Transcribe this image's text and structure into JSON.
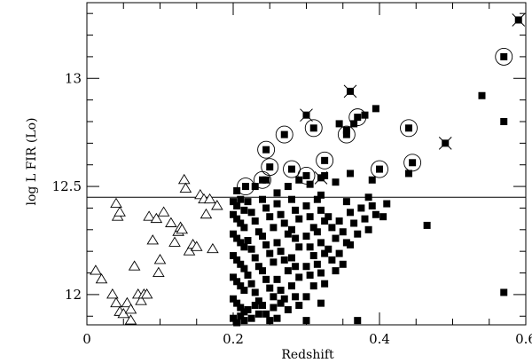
{
  "chart_data": {
    "type": "scatter",
    "title": "",
    "xlabel": "Redshift",
    "ylabel": "log L FIR (Lo)",
    "xlim": [
      0,
      0.6
    ],
    "ylim": [
      11.86,
      13.35
    ],
    "xticks": [
      0,
      0.2,
      0.4,
      0.6
    ],
    "xtick_labels": [
      "0",
      "0.2",
      "0.4",
      "0.6"
    ],
    "yticks": [
      12,
      12.5,
      13
    ],
    "ytick_labels": [
      "12",
      "12.5",
      "13"
    ],
    "grid": false,
    "legend": "none",
    "reference_line": {
      "y": 12.45
    },
    "series": [
      {
        "marker": "open-triangle",
        "points": [
          [
            0.012,
            12.11
          ],
          [
            0.02,
            12.07
          ],
          [
            0.04,
            12.42
          ],
          [
            0.042,
            12.36
          ],
          [
            0.045,
            12.38
          ],
          [
            0.035,
            12.0
          ],
          [
            0.04,
            11.96
          ],
          [
            0.045,
            11.92
          ],
          [
            0.05,
            11.91
          ],
          [
            0.055,
            11.96
          ],
          [
            0.06,
            11.93
          ],
          [
            0.06,
            11.88
          ],
          [
            0.065,
            12.13
          ],
          [
            0.07,
            12.0
          ],
          [
            0.074,
            11.97
          ],
          [
            0.078,
            12.0
          ],
          [
            0.082,
            12.0
          ],
          [
            0.085,
            12.36
          ],
          [
            0.09,
            12.25
          ],
          [
            0.095,
            12.35
          ],
          [
            0.098,
            12.1
          ],
          [
            0.1,
            12.16
          ],
          [
            0.105,
            12.38
          ],
          [
            0.115,
            12.33
          ],
          [
            0.12,
            12.24
          ],
          [
            0.125,
            12.29
          ],
          [
            0.128,
            12.31
          ],
          [
            0.13,
            12.3
          ],
          [
            0.133,
            12.53
          ],
          [
            0.135,
            12.49
          ],
          [
            0.14,
            12.2
          ],
          [
            0.145,
            12.23
          ],
          [
            0.15,
            12.22
          ],
          [
            0.155,
            12.46
          ],
          [
            0.16,
            12.44
          ],
          [
            0.163,
            12.37
          ],
          [
            0.168,
            12.44
          ],
          [
            0.172,
            12.21
          ],
          [
            0.178,
            12.41
          ]
        ]
      },
      {
        "marker": "filled-square",
        "points": [
          [
            0.2,
            12.43
          ],
          [
            0.205,
            12.41
          ],
          [
            0.21,
            12.44
          ],
          [
            0.215,
            12.39
          ],
          [
            0.2,
            12.37
          ],
          [
            0.205,
            12.35
          ],
          [
            0.21,
            12.33
          ],
          [
            0.215,
            12.31
          ],
          [
            0.2,
            12.28
          ],
          [
            0.205,
            12.26
          ],
          [
            0.21,
            12.24
          ],
          [
            0.215,
            12.22
          ],
          [
            0.2,
            12.18
          ],
          [
            0.205,
            12.16
          ],
          [
            0.21,
            12.14
          ],
          [
            0.215,
            12.12
          ],
          [
            0.2,
            12.08
          ],
          [
            0.205,
            12.06
          ],
          [
            0.21,
            12.04
          ],
          [
            0.215,
            12.02
          ],
          [
            0.2,
            11.98
          ],
          [
            0.205,
            11.96
          ],
          [
            0.21,
            11.94
          ],
          [
            0.215,
            11.92
          ],
          [
            0.2,
            11.89
          ],
          [
            0.205,
            11.87
          ],
          [
            0.21,
            11.9
          ],
          [
            0.215,
            11.88
          ],
          [
            0.22,
            12.43
          ],
          [
            0.225,
            12.38
          ],
          [
            0.23,
            12.34
          ],
          [
            0.235,
            12.29
          ],
          [
            0.22,
            12.25
          ],
          [
            0.225,
            12.21
          ],
          [
            0.23,
            12.17
          ],
          [
            0.235,
            12.13
          ],
          [
            0.22,
            12.09
          ],
          [
            0.225,
            12.05
          ],
          [
            0.23,
            12.01
          ],
          [
            0.235,
            11.97
          ],
          [
            0.22,
            11.93
          ],
          [
            0.225,
            11.89
          ],
          [
            0.23,
            11.95
          ],
          [
            0.235,
            11.91
          ],
          [
            0.24,
            12.44
          ],
          [
            0.245,
            12.4
          ],
          [
            0.25,
            12.36
          ],
          [
            0.255,
            12.31
          ],
          [
            0.24,
            12.27
          ],
          [
            0.245,
            12.23
          ],
          [
            0.25,
            12.19
          ],
          [
            0.255,
            12.15
          ],
          [
            0.24,
            12.11
          ],
          [
            0.245,
            12.07
          ],
          [
            0.25,
            12.03
          ],
          [
            0.255,
            11.99
          ],
          [
            0.24,
            11.95
          ],
          [
            0.245,
            11.91
          ],
          [
            0.25,
            11.88
          ],
          [
            0.255,
            11.94
          ],
          [
            0.26,
            12.42
          ],
          [
            0.265,
            12.37
          ],
          [
            0.27,
            12.33
          ],
          [
            0.275,
            12.28
          ],
          [
            0.26,
            12.24
          ],
          [
            0.265,
            12.2
          ],
          [
            0.27,
            12.16
          ],
          [
            0.275,
            12.11
          ],
          [
            0.26,
            12.07
          ],
          [
            0.265,
            12.02
          ],
          [
            0.27,
            11.98
          ],
          [
            0.275,
            11.93
          ],
          [
            0.26,
            11.89
          ],
          [
            0.265,
            11.96
          ],
          [
            0.28,
            12.44
          ],
          [
            0.285,
            12.39
          ],
          [
            0.29,
            12.35
          ],
          [
            0.28,
            12.3
          ],
          [
            0.285,
            12.26
          ],
          [
            0.29,
            12.22
          ],
          [
            0.28,
            12.17
          ],
          [
            0.285,
            12.13
          ],
          [
            0.29,
            12.08
          ],
          [
            0.28,
            12.04
          ],
          [
            0.285,
            11.99
          ],
          [
            0.29,
            11.95
          ],
          [
            0.3,
            12.41
          ],
          [
            0.305,
            12.36
          ],
          [
            0.31,
            12.31
          ],
          [
            0.3,
            12.27
          ],
          [
            0.305,
            12.22
          ],
          [
            0.31,
            12.18
          ],
          [
            0.3,
            12.13
          ],
          [
            0.305,
            12.09
          ],
          [
            0.31,
            12.04
          ],
          [
            0.3,
            11.99
          ],
          [
            0.315,
            12.44
          ],
          [
            0.32,
            12.39
          ],
          [
            0.325,
            12.34
          ],
          [
            0.315,
            12.29
          ],
          [
            0.32,
            12.24
          ],
          [
            0.325,
            12.19
          ],
          [
            0.315,
            12.14
          ],
          [
            0.32,
            12.1
          ],
          [
            0.325,
            12.05
          ],
          [
            0.33,
            12.36
          ],
          [
            0.335,
            12.31
          ],
          [
            0.34,
            12.26
          ],
          [
            0.33,
            12.21
          ],
          [
            0.335,
            12.16
          ],
          [
            0.34,
            12.11
          ],
          [
            0.345,
            12.34
          ],
          [
            0.35,
            12.29
          ],
          [
            0.355,
            12.24
          ],
          [
            0.345,
            12.19
          ],
          [
            0.35,
            12.14
          ],
          [
            0.36,
            12.38
          ],
          [
            0.365,
            12.33
          ],
          [
            0.37,
            12.28
          ],
          [
            0.36,
            12.23
          ],
          [
            0.375,
            12.4
          ],
          [
            0.38,
            12.35
          ],
          [
            0.385,
            12.3
          ],
          [
            0.39,
            12.41
          ],
          [
            0.395,
            12.37
          ],
          [
            0.405,
            12.36
          ],
          [
            0.41,
            12.42
          ],
          [
            0.385,
            12.45
          ],
          [
            0.355,
            12.43
          ],
          [
            0.32,
            12.46
          ],
          [
            0.3,
            11.88
          ],
          [
            0.32,
            11.96
          ],
          [
            0.37,
            11.88
          ],
          [
            0.465,
            12.32
          ],
          [
            0.57,
            12.01
          ],
          [
            0.205,
            12.48
          ],
          [
            0.23,
            12.5
          ],
          [
            0.245,
            12.53
          ],
          [
            0.26,
            12.47
          ],
          [
            0.275,
            12.5
          ],
          [
            0.29,
            12.53
          ],
          [
            0.305,
            12.51
          ],
          [
            0.325,
            12.55
          ],
          [
            0.34,
            12.52
          ],
          [
            0.36,
            12.56
          ],
          [
            0.365,
            12.79
          ],
          [
            0.38,
            12.83
          ],
          [
            0.395,
            12.86
          ],
          [
            0.345,
            12.79
          ],
          [
            0.355,
            12.76
          ],
          [
            0.39,
            12.53
          ],
          [
            0.44,
            12.56
          ],
          [
            0.54,
            12.92
          ],
          [
            0.57,
            12.8
          ]
        ]
      },
      {
        "marker": "circled-filled-square",
        "points": [
          [
            0.217,
            12.5
          ],
          [
            0.24,
            12.53
          ],
          [
            0.245,
            12.67
          ],
          [
            0.25,
            12.59
          ],
          [
            0.27,
            12.74
          ],
          [
            0.28,
            12.58
          ],
          [
            0.3,
            12.55
          ],
          [
            0.31,
            12.77
          ],
          [
            0.325,
            12.62
          ],
          [
            0.355,
            12.74
          ],
          [
            0.37,
            12.82
          ],
          [
            0.4,
            12.58
          ],
          [
            0.44,
            12.77
          ],
          [
            0.445,
            12.61
          ],
          [
            0.57,
            13.1
          ]
        ]
      },
      {
        "marker": "crossed-filled-square",
        "points": [
          [
            0.3,
            12.83
          ],
          [
            0.32,
            12.54
          ],
          [
            0.36,
            12.94
          ],
          [
            0.49,
            12.7
          ],
          [
            0.59,
            13.27
          ]
        ]
      }
    ]
  }
}
